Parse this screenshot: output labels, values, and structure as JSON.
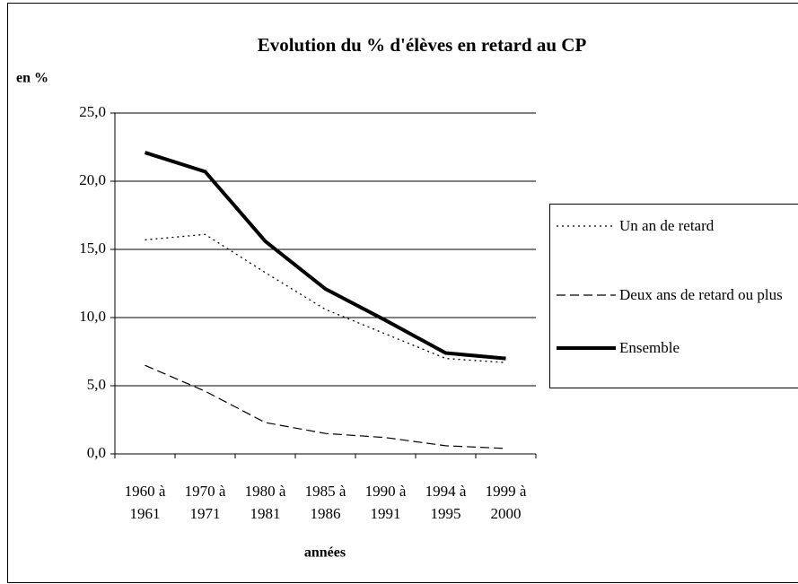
{
  "chart_data": {
    "type": "line",
    "title": "Evolution du % d'élèves en retard au CP",
    "y_label": "en %",
    "x_label": "années",
    "categories": [
      "1960 à 1961",
      "1970 à 1971",
      "1980 à 1981",
      "1985 à 1986",
      "1990 à 1991",
      "1994 à 1995",
      "1999 à 2000"
    ],
    "series": [
      {
        "name": "Un an de retard",
        "color": "#000000",
        "style": "dotted",
        "values": [
          15.7,
          16.1,
          13.3,
          10.6,
          8.8,
          7.0,
          6.7
        ]
      },
      {
        "name": "Deux ans de retard ou plus",
        "color": "#000000",
        "style": "dashed",
        "values": [
          6.5,
          4.6,
          2.3,
          1.5,
          1.2,
          0.6,
          0.4
        ]
      },
      {
        "name": "Ensemble",
        "color": "#000000",
        "style": "thick",
        "values": [
          22.1,
          20.7,
          15.6,
          12.1,
          9.8,
          7.4,
          7.0
        ]
      }
    ],
    "ylim": [
      0,
      25
    ],
    "yticks": [
      {
        "value": 0,
        "label": "0,0"
      },
      {
        "value": 5,
        "label": "5,0"
      },
      {
        "value": 10,
        "label": "10,0"
      },
      {
        "value": 15,
        "label": "15,0"
      },
      {
        "value": 20,
        "label": "20,0"
      },
      {
        "value": 25,
        "label": "25,0"
      }
    ],
    "grid": true,
    "legend": "right"
  }
}
